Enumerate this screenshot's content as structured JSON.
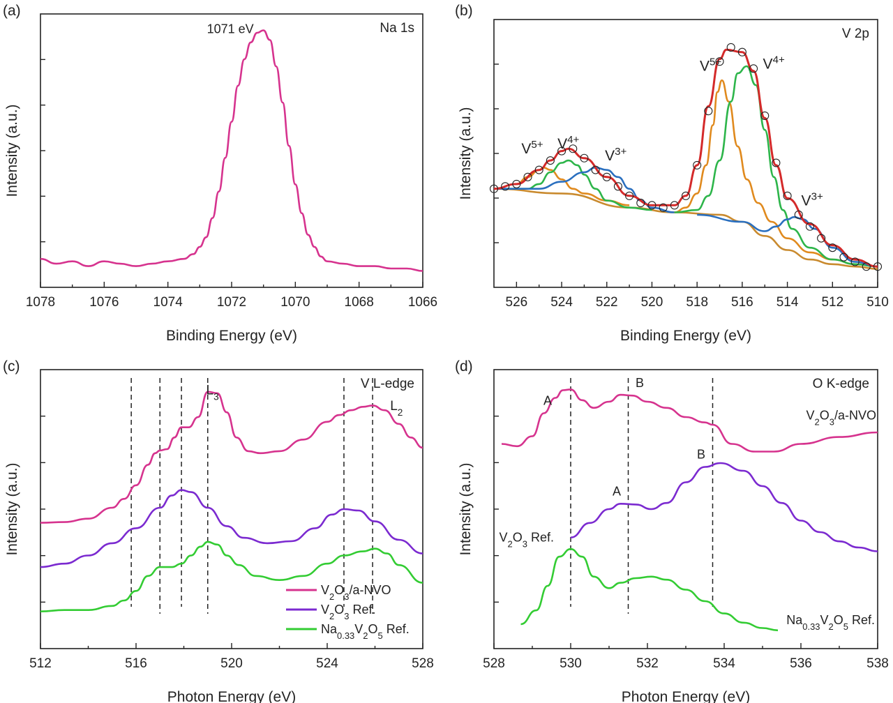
{
  "chart_data": [
    {
      "panel_label": "(a)",
      "type": "line",
      "title": "Na 1s",
      "xlabel": "Binding Energy (eV)",
      "ylabel": "Intensity (a.u.)",
      "xlim": [
        1078,
        1066
      ],
      "ylim": [
        0,
        1
      ],
      "xticks": [
        1078,
        1076,
        1074,
        1072,
        1070,
        1068,
        1066
      ],
      "x_reversed": true,
      "annotations": [
        {
          "text": "1071 eV",
          "x": 1071
        }
      ],
      "series": [
        {
          "color": "#d6338e",
          "x": [
            1078,
            1077.5,
            1077,
            1076.5,
            1076,
            1075.5,
            1075,
            1074.5,
            1074,
            1073.5,
            1073.2,
            1073,
            1072.8,
            1072.6,
            1072.4,
            1072.2,
            1072,
            1071.8,
            1071.6,
            1071.4,
            1071.2,
            1071,
            1070.8,
            1070.6,
            1070.4,
            1070.2,
            1070,
            1069.8,
            1069.6,
            1069.4,
            1069.2,
            1069,
            1068.5,
            1068,
            1067.5,
            1067,
            1066.5,
            1066
          ],
          "y": [
            0.05,
            0.03,
            0.04,
            0.02,
            0.04,
            0.03,
            0.02,
            0.03,
            0.04,
            0.05,
            0.07,
            0.1,
            0.14,
            0.22,
            0.33,
            0.47,
            0.62,
            0.77,
            0.88,
            0.95,
            0.99,
            1.0,
            0.96,
            0.85,
            0.7,
            0.52,
            0.36,
            0.24,
            0.15,
            0.1,
            0.06,
            0.04,
            0.03,
            0.02,
            0.02,
            0.01,
            0.01,
            0.0
          ]
        }
      ]
    },
    {
      "panel_label": "(b)",
      "type": "line",
      "title": "V 2p",
      "xlabel": "Binding Energy (eV)",
      "ylabel": "Intensity (a.u.)",
      "xlim": [
        527,
        510
      ],
      "ylim": [
        0,
        1
      ],
      "xticks": [
        526,
        524,
        522,
        520,
        518,
        516,
        514,
        512,
        510
      ],
      "x_reversed": true,
      "annotations": [
        {
          "text": "V",
          "sup": "5+",
          "x": 525.3,
          "color": "#e08a1e"
        },
        {
          "text": "V",
          "sup": "4+",
          "x": 523.7,
          "color": "#2db54a"
        },
        {
          "text": "V",
          "sup": "3+",
          "x": 521.6,
          "color": "#2a6fbf"
        },
        {
          "text": "V",
          "sup": "5+",
          "x": 517.4,
          "color": "#e08a1e"
        },
        {
          "text": "V",
          "sup": "4+",
          "x": 514.6,
          "color": "#2db54a"
        },
        {
          "text": "V",
          "sup": "3+",
          "x": 512.9,
          "color": "#2a6fbf"
        }
      ],
      "series": [
        {
          "role": "background",
          "color": "#c98a2e",
          "x": [
            527,
            524,
            521,
            519,
            517,
            516,
            515,
            514,
            513,
            512,
            511,
            510
          ],
          "y": [
            0.35,
            0.33,
            0.27,
            0.25,
            0.24,
            0.21,
            0.15,
            0.09,
            0.05,
            0.03,
            0.02,
            0.01
          ]
        },
        {
          "role": "V5+ 2p1/2",
          "color": "#e08a1e",
          "x": [
            527,
            526,
            525.5,
            525,
            524.8,
            524.5,
            524,
            523.5,
            523,
            522,
            521
          ],
          "y": [
            0.35,
            0.37,
            0.4,
            0.43,
            0.44,
            0.43,
            0.39,
            0.35,
            0.33,
            0.3,
            0.28
          ]
        },
        {
          "role": "V4+ 2p1/2",
          "color": "#2db54a",
          "x": [
            527,
            525.5,
            525,
            524.5,
            524,
            523.7,
            523.3,
            523,
            522.5,
            522,
            521,
            520
          ],
          "y": [
            0.35,
            0.35,
            0.37,
            0.42,
            0.46,
            0.47,
            0.45,
            0.41,
            0.35,
            0.3,
            0.27,
            0.26
          ]
        },
        {
          "role": "V3+ 2p1/2",
          "color": "#2a6fbf",
          "x": [
            527,
            525,
            524,
            523,
            522.5,
            522,
            521.5,
            521,
            520.5,
            520,
            519
          ],
          "y": [
            0.35,
            0.35,
            0.38,
            0.42,
            0.44,
            0.43,
            0.4,
            0.35,
            0.3,
            0.27,
            0.25
          ]
        },
        {
          "role": "V5+ 2p3/2",
          "color": "#e08a1e",
          "x": [
            519,
            518.5,
            518,
            517.6,
            517.3,
            517.1,
            516.9,
            516.6,
            516.2,
            515.8,
            515.3,
            514.7,
            514,
            513,
            512,
            511,
            510
          ],
          "y": [
            0.25,
            0.27,
            0.33,
            0.45,
            0.62,
            0.76,
            0.81,
            0.72,
            0.53,
            0.39,
            0.29,
            0.21,
            0.14,
            0.08,
            0.05,
            0.03,
            0.02
          ]
        },
        {
          "role": "V4+ 2p3/2",
          "color": "#2db54a",
          "x": [
            519,
            518,
            517.5,
            517,
            516.5,
            516.2,
            515.8,
            515.4,
            515,
            514.6,
            514.2,
            513.8,
            513,
            512,
            511,
            510
          ],
          "y": [
            0.25,
            0.26,
            0.32,
            0.47,
            0.72,
            0.84,
            0.87,
            0.79,
            0.6,
            0.4,
            0.26,
            0.18,
            0.1,
            0.05,
            0.03,
            0.02
          ]
        },
        {
          "role": "V3+ 2p3/2",
          "color": "#2a6fbf",
          "x": [
            518,
            516,
            515,
            514.5,
            514,
            513.7,
            513.3,
            512.8,
            512,
            511,
            510
          ],
          "y": [
            0.24,
            0.21,
            0.17,
            0.19,
            0.22,
            0.23,
            0.22,
            0.18,
            0.1,
            0.04,
            0.02
          ]
        },
        {
          "role": "fit envelope",
          "color": "#d42a2a",
          "x": [
            527,
            526,
            525,
            524.5,
            524,
            523.7,
            523,
            522,
            521,
            520,
            519,
            518.5,
            518,
            517.5,
            517,
            516.7,
            516,
            515.5,
            515,
            514.5,
            514,
            513,
            512,
            511,
            510
          ],
          "y": [
            0.35,
            0.37,
            0.43,
            0.47,
            0.51,
            0.52,
            0.48,
            0.4,
            0.32,
            0.28,
            0.28,
            0.32,
            0.45,
            0.7,
            0.9,
            0.94,
            0.93,
            0.85,
            0.65,
            0.45,
            0.31,
            0.2,
            0.11,
            0.05,
            0.02
          ]
        },
        {
          "role": "experimental",
          "marker": "open-circle",
          "color": "#222222",
          "x": [
            527,
            526.5,
            526,
            525.5,
            525,
            524.5,
            524,
            523.5,
            523,
            522.5,
            522,
            521.5,
            521,
            520.5,
            520,
            519.5,
            519,
            518.5,
            518,
            517.5,
            517,
            516.5,
            516,
            515.5,
            515,
            514.5,
            514,
            513.5,
            513,
            512.5,
            512,
            511.5,
            511,
            510.5,
            510
          ],
          "y": [
            0.35,
            0.36,
            0.37,
            0.4,
            0.43,
            0.47,
            0.51,
            0.52,
            0.48,
            0.43,
            0.4,
            0.36,
            0.32,
            0.29,
            0.28,
            0.27,
            0.28,
            0.32,
            0.45,
            0.68,
            0.89,
            0.95,
            0.93,
            0.86,
            0.66,
            0.46,
            0.32,
            0.24,
            0.19,
            0.14,
            0.1,
            0.06,
            0.04,
            0.02,
            0.02
          ]
        }
      ]
    },
    {
      "panel_label": "(c)",
      "type": "line",
      "title": "V L-edge",
      "xlabel": "Photon Energy (eV)",
      "ylabel": "Intensity (a.u.)",
      "xlim": [
        512,
        528
      ],
      "ylim": [
        0,
        3.6
      ],
      "xticks": [
        512,
        516,
        520,
        524,
        528
      ],
      "annotations": [
        {
          "text": "L",
          "sub": "3",
          "x": 519.2
        },
        {
          "text": "L",
          "sub": "2",
          "x": 526.9
        }
      ],
      "reference_lines_x": [
        515.8,
        517.0,
        517.9,
        519.0,
        524.7,
        525.9
      ],
      "legend": {
        "placement": "lower-right",
        "entries": [
          {
            "text": "V",
            "sub": "2",
            "text2": "O",
            "sub2": "3",
            "text3": "/a-NVO",
            "color": "#d6338e"
          },
          {
            "text": "V",
            "sub": "2",
            "text2": "O",
            "sub2": "3",
            "text3": " Ref.",
            "color": "#7b2ad0"
          },
          {
            "text": "Na",
            "sub": "0.33",
            "text2": "V",
            "sub2": "2",
            "text3": "O",
            "sub3": "5",
            "text4": " Ref.",
            "color": "#33cc33"
          }
        ]
      },
      "series": [
        {
          "color": "#d6338e",
          "x": [
            512,
            513,
            514,
            515,
            515.5,
            516,
            516.5,
            516.8,
            517,
            517.3,
            517.6,
            517.9,
            518.2,
            518.6,
            519,
            519.4,
            519.8,
            520.2,
            520.7,
            521.2,
            522,
            523,
            524,
            524.5,
            525,
            525.5,
            525.9,
            526.4,
            527,
            527.5,
            528
          ],
          "y": [
            1.6,
            1.61,
            1.66,
            1.82,
            1.95,
            2.15,
            2.45,
            2.62,
            2.66,
            2.68,
            2.85,
            3.0,
            3.0,
            3.15,
            3.52,
            3.5,
            3.22,
            2.85,
            2.65,
            2.62,
            2.65,
            2.82,
            3.08,
            3.18,
            3.25,
            3.3,
            3.32,
            3.25,
            3.05,
            2.85,
            2.7
          ]
        },
        {
          "color": "#7b2ad0",
          "x": [
            512,
            513,
            514,
            515,
            516,
            517,
            517.5,
            517.9,
            518.3,
            519,
            519.8,
            520.5,
            521.5,
            522.5,
            523.5,
            524.2,
            524.7,
            525.3,
            526,
            527,
            528
          ],
          "y": [
            0.95,
            1.0,
            1.12,
            1.3,
            1.52,
            1.82,
            2.0,
            2.08,
            2.05,
            1.82,
            1.55,
            1.38,
            1.3,
            1.33,
            1.52,
            1.72,
            1.8,
            1.78,
            1.62,
            1.35,
            1.15
          ]
        },
        {
          "color": "#33cc33",
          "x": [
            512,
            513,
            514,
            515,
            515.5,
            516,
            516.5,
            517,
            517.5,
            517.9,
            518.3,
            518.7,
            519,
            519.4,
            519.8,
            520.3,
            521,
            522,
            523,
            524,
            524.7,
            525.5,
            526,
            526.5,
            527,
            528
          ],
          "y": [
            0.3,
            0.32,
            0.32,
            0.38,
            0.46,
            0.6,
            0.82,
            0.95,
            0.95,
            1.0,
            1.12,
            1.25,
            1.32,
            1.28,
            1.12,
            0.98,
            0.82,
            0.76,
            0.82,
            1.0,
            1.12,
            1.18,
            1.22,
            1.15,
            0.98,
            0.72
          ]
        }
      ]
    },
    {
      "panel_label": "(d)",
      "type": "line",
      "title": "O K-edge",
      "xlabel": "Photon Energy (eV)",
      "ylabel": "Intensity (a.u.)",
      "xlim": [
        528,
        538
      ],
      "ylim": [
        0,
        3.2
      ],
      "xticks": [
        528,
        530,
        532,
        534,
        536,
        538
      ],
      "reference_lines_x": [
        530.0,
        531.5,
        533.7
      ],
      "annotations": [
        {
          "text": "A",
          "x": 529.4,
          "curve": 0
        },
        {
          "text": "B",
          "x": 531.8,
          "curve": 0
        },
        {
          "text": "A",
          "x": 531.2,
          "curve": 1
        },
        {
          "text": "B",
          "x": 533.4,
          "curve": 1
        }
      ],
      "series_labels": [
        {
          "text": "V",
          "sub": "2",
          "text2": "O",
          "sub2": "3",
          "text3": "/a-NVO",
          "color": "#d6338e"
        },
        {
          "text": "V",
          "sub": "2",
          "text2": "O",
          "sub2": "3",
          "text3": " Ref.",
          "color": "#7b2ad0"
        },
        {
          "text": "Na",
          "sub": "0.33",
          "text2": "V",
          "sub2": "2",
          "text3": "O",
          "sub3": "5",
          "text4": " Ref.",
          "color": "#33cc33"
        }
      ],
      "series": [
        {
          "color": "#d6338e",
          "x": [
            528.2,
            528.6,
            529,
            529.3,
            529.6,
            529.8,
            530,
            530.3,
            530.6,
            531,
            531.3,
            531.6,
            532,
            532.5,
            533,
            533.5,
            533.7,
            534.2,
            534.8,
            535.3,
            536,
            537,
            538
          ],
          "y": [
            2.45,
            2.42,
            2.55,
            2.85,
            3.05,
            3.15,
            3.16,
            3.02,
            2.92,
            3.0,
            3.09,
            3.08,
            3.0,
            2.92,
            2.8,
            2.73,
            2.7,
            2.45,
            2.35,
            2.35,
            2.45,
            2.54,
            2.6
          ]
        },
        {
          "color": "#7b2ad0",
          "x": [
            530,
            530.5,
            531,
            531.3,
            531.7,
            532.1,
            532.5,
            533,
            533.5,
            533.9,
            534.5,
            535,
            535.5,
            536,
            536.5,
            537,
            537.5,
            538
          ],
          "y": [
            1.23,
            1.42,
            1.6,
            1.67,
            1.66,
            1.6,
            1.68,
            1.95,
            2.15,
            2.2,
            2.1,
            1.9,
            1.68,
            1.45,
            1.3,
            1.18,
            1.1,
            1.05
          ]
        },
        {
          "color": "#33cc33",
          "x": [
            528.7,
            529.1,
            529.4,
            529.7,
            530,
            530.3,
            530.6,
            531,
            531.3,
            531.7,
            532.1,
            532.5,
            533,
            533.5,
            534,
            534.5,
            535,
            535.4
          ],
          "y": [
            0.1,
            0.28,
            0.6,
            0.98,
            1.08,
            0.98,
            0.72,
            0.57,
            0.64,
            0.7,
            0.72,
            0.68,
            0.55,
            0.4,
            0.24,
            0.12,
            0.05,
            0.02
          ]
        }
      ]
    }
  ]
}
